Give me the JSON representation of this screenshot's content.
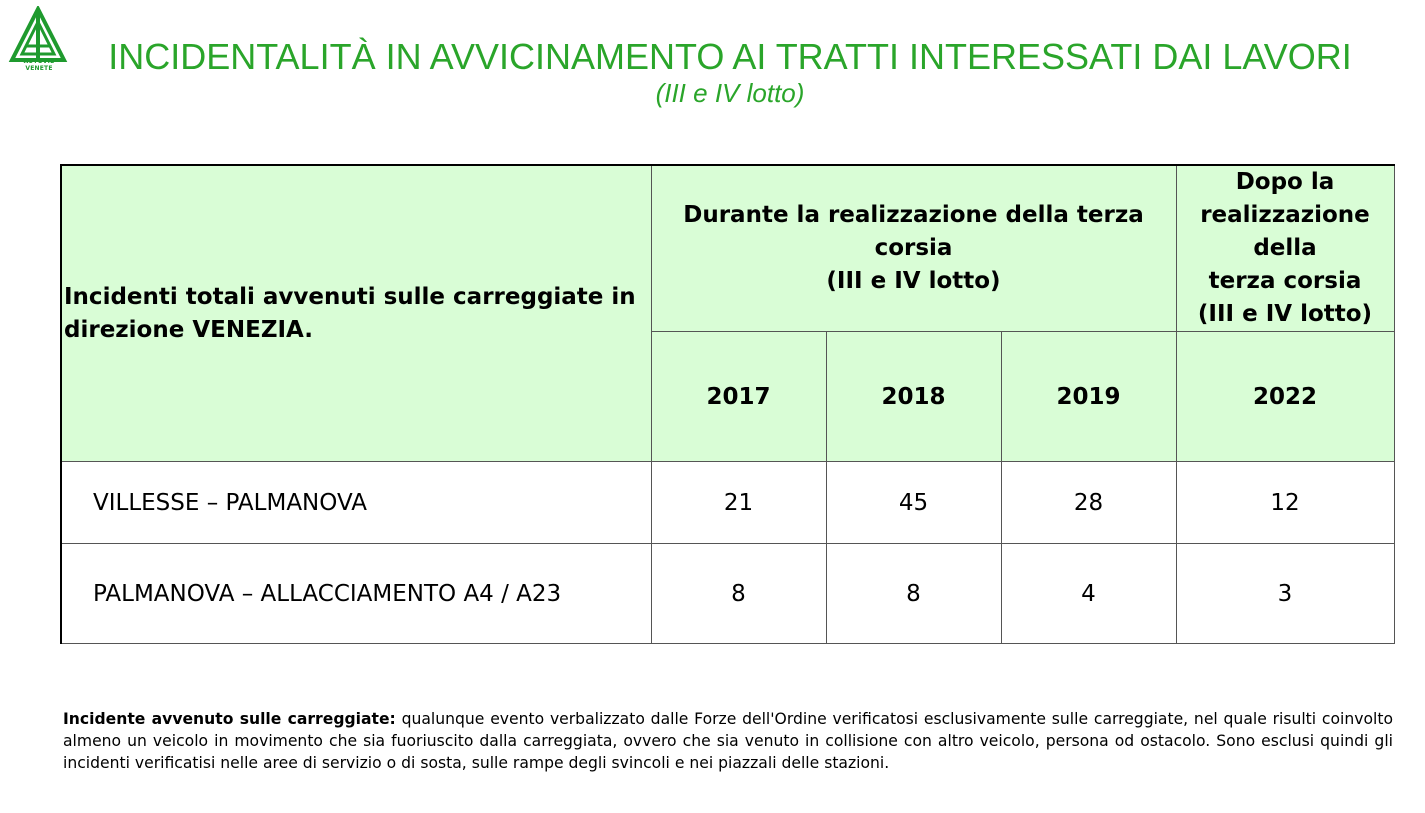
{
  "logo": {
    "text": "AUTOVIE VENETE",
    "color": "#1f9a2e"
  },
  "title": "INCIDENTALITÀ IN AVVICINAMENTO AI TRATTI INTERESSATI DAI LAVORI",
  "subtitle": "(III e IV lotto)",
  "table": {
    "header_main_line1": "Incidenti totali avvenuti sulle carreggiate in",
    "header_main_line2": "direzione VENEZIA.",
    "group_during_line1": "Durante la realizzazione della terza corsia",
    "group_during_line2": "(III e IV lotto)",
    "group_after_line1": "Dopo la",
    "group_after_line2": "realizzazione della",
    "group_after_line3": "terza corsia",
    "group_after_line4": "(III e IV lotto)",
    "years": [
      "2017",
      "2018",
      "2019",
      "2022"
    ],
    "rows": [
      {
        "label": "VILLESSE – PALMANOVA",
        "values": [
          "21",
          "45",
          "28",
          "12"
        ]
      },
      {
        "label": "PALMANOVA – ALLACCIAMENTO A4 / A23",
        "values": [
          "8",
          "8",
          "4",
          "3"
        ]
      }
    ],
    "header_bg": "#d9fdd6"
  },
  "footnote": {
    "term": "Incidente avvenuto sulle carreggiate:",
    "text": " qualunque evento verbalizzato dalle Forze dell'Ordine verificatosi esclusivamente sulle carreggiate, nel quale risulti coinvolto almeno un veicolo in movimento che sia fuoriuscito dalla carreggiata, ovvero che sia venuto in collisione con altro veicolo, persona od ostacolo. Sono esclusi quindi gli incidenti verificatisi nelle aree di servizio o di sosta, sulle rampe degli svincoli e nei piazzali delle stazioni."
  },
  "colors": {
    "title": "#2aa52a"
  }
}
